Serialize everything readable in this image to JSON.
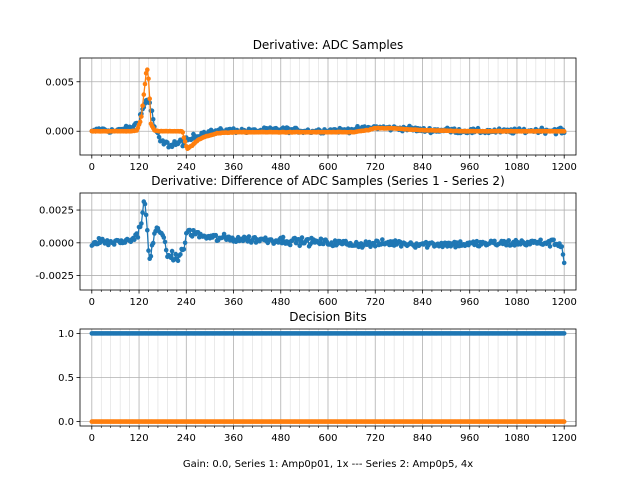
{
  "figure": {
    "footer": "Gain: 0.0, Series 1: Amp0p01, 1x --- Series 2: Amp0p5, 4x",
    "series_colors": {
      "series1": "#1f77b4",
      "series2": "#ff7f0e"
    }
  },
  "chart_data": [
    {
      "type": "scatter",
      "title": "Derivative: ADC Samples",
      "xlabel": "",
      "ylabel": "",
      "xlim": [
        -30,
        1230
      ],
      "ylim": [
        -0.0024,
        0.0074
      ],
      "x_ticks": [
        0,
        120,
        240,
        360,
        480,
        600,
        720,
        840,
        960,
        1080,
        1200
      ],
      "x_tick_labels": [
        "0",
        "120",
        "240",
        "360",
        "480",
        "600",
        "720",
        "840",
        "960",
        "1080",
        "1200"
      ],
      "y_ticks": [
        0.0,
        0.005
      ],
      "y_tick_labels": [
        "0.000",
        "0.005"
      ],
      "grid": true,
      "series": [
        {
          "name": "Series 1",
          "color": "#1f77b4",
          "x": [
            0,
            20,
            40,
            60,
            80,
            100,
            110,
            120,
            130,
            140,
            145,
            150,
            160,
            170,
            180,
            190,
            200,
            210,
            220,
            230,
            240,
            250,
            260,
            270,
            280,
            300,
            320,
            360,
            400,
            480,
            560,
            600,
            640,
            680,
            700,
            720,
            760,
            800,
            840,
            900,
            960,
            1000,
            1080,
            1140,
            1190,
            1200
          ],
          "y": [
            -0.0001,
            0.0002,
            0.0001,
            0.0,
            0.0002,
            0.0003,
            0.0006,
            0.0012,
            0.0022,
            0.0033,
            0.0032,
            0.0022,
            0.0004,
            -0.0008,
            -0.0012,
            -0.0013,
            -0.0014,
            -0.0012,
            -0.0013,
            -0.001,
            -0.0012,
            -0.0008,
            -0.0006,
            -0.0005,
            -0.0002,
            -0.0001,
            0.0,
            0.0001,
            0.0,
            0.0002,
            0.0,
            0.0001,
            0.0001,
            0.0002,
            0.0003,
            0.0004,
            0.0003,
            0.0003,
            0.0001,
            0.0001,
            0.0,
            0.0,
            0.0,
            0.0001,
            0.0001,
            -0.0001
          ],
          "spread": [
            0.00045,
            0.00045,
            0.00045,
            0.00045,
            0.00045,
            0.0005,
            0.0006,
            0.0007,
            0.0009,
            0.0011,
            0.0012,
            0.0012,
            0.001,
            0.0008,
            0.0007,
            0.0007,
            0.0007,
            0.0007,
            0.0007,
            0.0008,
            0.0009,
            0.0007,
            0.0006,
            0.0005,
            0.0005,
            0.00045,
            0.00045,
            0.00045,
            0.00045,
            0.00045,
            0.00045,
            0.00045,
            0.00045,
            0.00045,
            0.00045,
            0.00045,
            0.00045,
            0.00045,
            0.00045,
            0.00045,
            0.00045,
            0.00045,
            0.00045,
            0.00045,
            0.0006,
            0.0009
          ]
        },
        {
          "name": "Series 2",
          "color": "#ff7f0e",
          "x": [
            0,
            60,
            100,
            115,
            125,
            132,
            138,
            142,
            146,
            150,
            158,
            170,
            200,
            230,
            242,
            255,
            270,
            290,
            320,
            360,
            480,
            600,
            660,
            700,
            720,
            760,
            840,
            960,
            1080,
            1200
          ],
          "y": [
            0.0,
            0.0,
            0.0,
            0.0001,
            0.0012,
            0.0038,
            0.0058,
            0.0063,
            0.004,
            0.0008,
            0.0001,
            0.0,
            0.0,
            0.0,
            -0.0018,
            -0.0014,
            -0.0009,
            -0.0005,
            -0.0002,
            -0.0001,
            -0.0001,
            -0.0001,
            -0.0001,
            0.0001,
            0.0003,
            0.0003,
            0.0001,
            0.0,
            0.0,
            0.0
          ],
          "spread": [
            3e-05,
            3e-05,
            3e-05,
            5e-05,
            0.0002,
            0.0003,
            0.0003,
            0.0003,
            0.0003,
            0.0002,
            5e-05,
            3e-05,
            3e-05,
            5e-05,
            0.0002,
            0.00015,
            0.0001,
            8e-05,
            6e-05,
            5e-05,
            5e-05,
            5e-05,
            5e-05,
            6e-05,
            8e-05,
            6e-05,
            5e-05,
            4e-05,
            4e-05,
            4e-05
          ]
        }
      ]
    },
    {
      "type": "scatter",
      "title": "Derivative: Difference of ADC Samples (Series 1 - Series 2)",
      "xlabel": "",
      "ylabel": "",
      "xlim": [
        -30,
        1230
      ],
      "ylim": [
        -0.0036,
        0.0038
      ],
      "x_ticks": [
        0,
        120,
        240,
        360,
        480,
        600,
        720,
        840,
        960,
        1080,
        1200
      ],
      "x_tick_labels": [
        "0",
        "120",
        "240",
        "360",
        "480",
        "600",
        "720",
        "840",
        "960",
        "1080",
        "1200"
      ],
      "y_ticks": [
        0.0025,
        0.0,
        -0.0025
      ],
      "y_tick_labels": [
        "0.0025",
        "0.0000",
        "-0.0025"
      ],
      "grid": true,
      "series": [
        {
          "name": "Series 1 - Series 2",
          "color": "#1f77b4",
          "x": [
            0,
            20,
            40,
            80,
            100,
            115,
            125,
            132,
            138,
            142,
            146,
            150,
            158,
            170,
            190,
            210,
            230,
            235,
            240,
            245,
            255,
            270,
            300,
            360,
            480,
            600,
            680,
            720,
            760,
            840,
            960,
            1080,
            1180,
            1195,
            1200
          ],
          "y": [
            -0.0003,
            0.0002,
            0.0,
            0.0001,
            0.0002,
            0.0006,
            0.0015,
            0.0028,
            0.0025,
            0.0002,
            -0.0015,
            -0.0012,
            0.0005,
            0.0015,
            -0.0008,
            -0.0012,
            -0.0008,
            -0.0002,
            0.0007,
            0.0008,
            0.0008,
            0.0006,
            0.0004,
            0.0003,
            0.0002,
            0.0,
            -0.0001,
            -0.0001,
            0.0,
            -0.0001,
            -0.0001,
            0.0,
            0.0,
            -0.0003,
            -0.001
          ],
          "spread": [
            0.00045,
            0.00045,
            0.00045,
            0.00045,
            0.0005,
            0.0006,
            0.0008,
            0.0009,
            0.0011,
            0.0014,
            0.0016,
            0.0012,
            0.0008,
            0.0008,
            0.0007,
            0.0007,
            0.0007,
            0.0008,
            0.0008,
            0.0007,
            0.0007,
            0.0006,
            0.0006,
            0.0005,
            0.0005,
            0.0005,
            0.0005,
            0.0005,
            0.0005,
            0.0005,
            0.0005,
            0.0005,
            0.0005,
            0.0008,
            0.0012
          ]
        }
      ]
    },
    {
      "type": "scatter",
      "title": "Decision Bits",
      "xlabel": "Gain: 0.0, Series 1: Amp0p01, 1x --- Series 2: Amp0p5, 4x",
      "ylabel": "",
      "xlim": [
        -30,
        1230
      ],
      "ylim": [
        -0.05,
        1.05
      ],
      "x_ticks": [
        0,
        120,
        240,
        360,
        480,
        600,
        720,
        840,
        960,
        1080,
        1200
      ],
      "x_tick_labels": [
        "0",
        "120",
        "240",
        "360",
        "480",
        "600",
        "720",
        "840",
        "960",
        "1080",
        "1200"
      ],
      "y_ticks": [
        1.0,
        0.5,
        0.0
      ],
      "y_tick_labels": [
        "1.0",
        "0.5",
        "0.0"
      ],
      "grid": true,
      "series": [
        {
          "name": "Series 1",
          "color": "#1f77b4",
          "x": [
            0,
            1200
          ],
          "y": [
            1.0,
            1.0
          ],
          "spread": [
            0,
            0
          ]
        },
        {
          "name": "Series 2",
          "color": "#ff7f0e",
          "x": [
            0,
            1200
          ],
          "y": [
            0.0,
            0.0
          ],
          "spread": [
            0,
            0
          ]
        }
      ]
    }
  ]
}
